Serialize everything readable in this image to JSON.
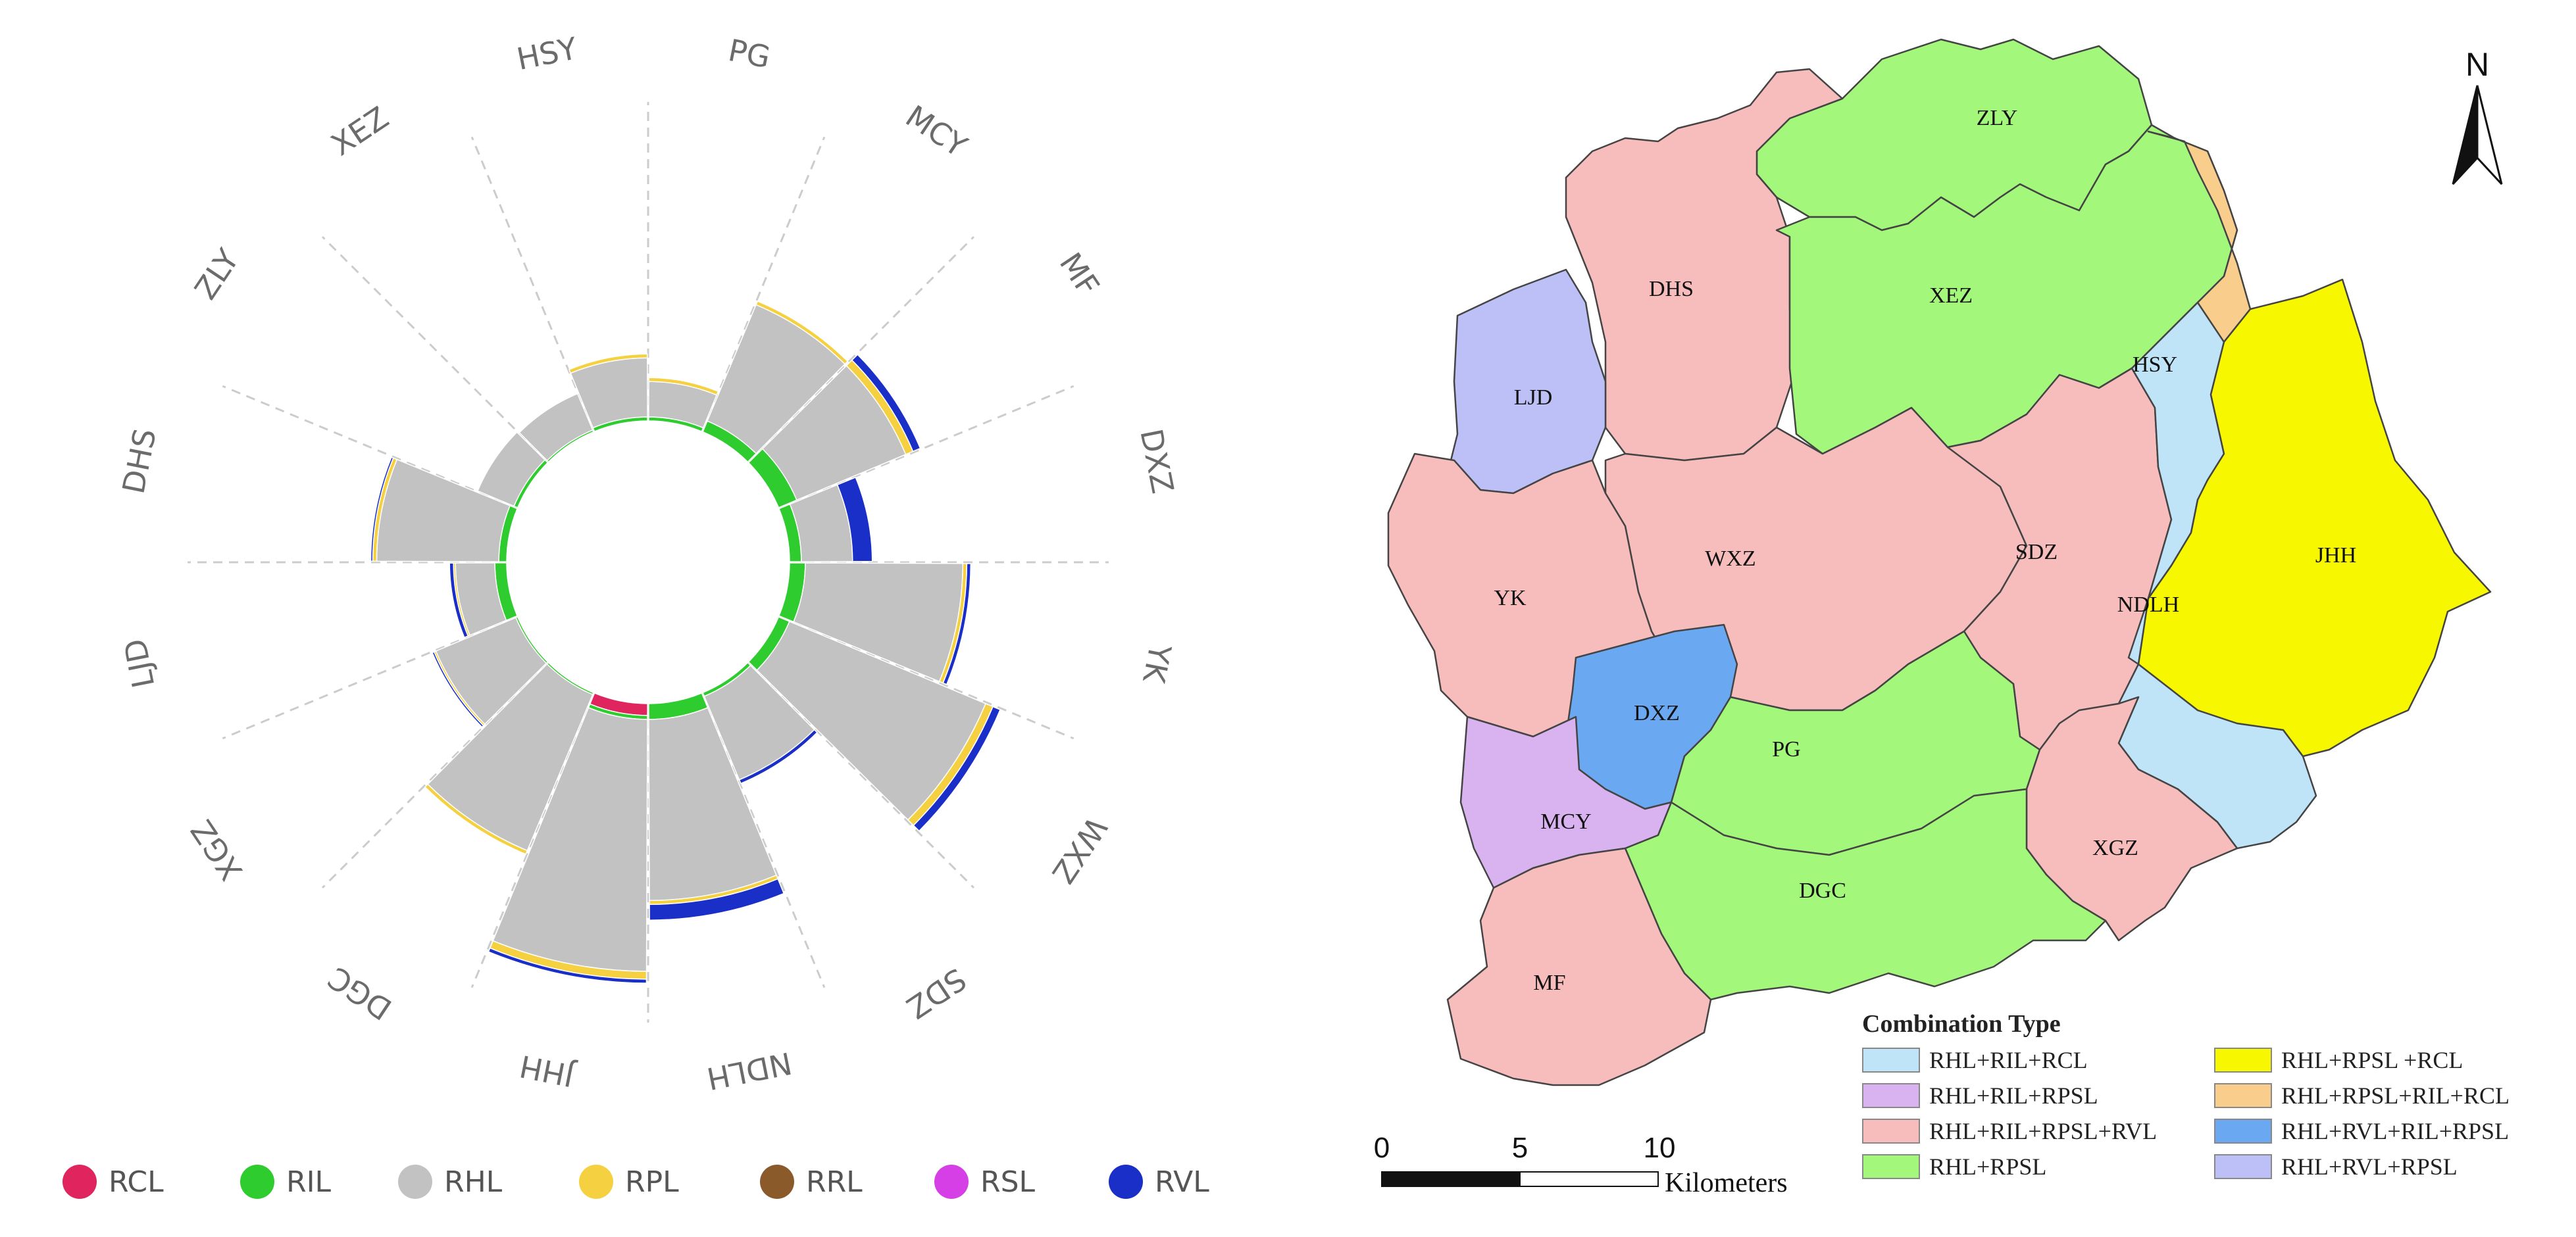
{
  "chart_data": [
    {
      "type": "radial-stacked-bar",
      "categories": [
        "PG",
        "MCY",
        "MF",
        "DXZ",
        "YK",
        "WXZ",
        "SDZ",
        "NDLH",
        "JHH",
        "DGC",
        "XGZ",
        "LJD",
        "DHS",
        "ZLY",
        "XEZ",
        "HSY"
      ],
      "series": [
        {
          "name": "RCL",
          "color": "#e0245e",
          "values": [
            0,
            0,
            0,
            0,
            0,
            0,
            0,
            0,
            3,
            0,
            0,
            0,
            0,
            0,
            0,
            0
          ]
        },
        {
          "name": "RIL",
          "color": "#2ecc2e",
          "values": [
            1,
            3,
            5,
            3,
            4,
            3,
            1,
            4,
            1,
            0.5,
            0.5,
            3,
            2,
            1,
            0.5,
            1
          ]
        },
        {
          "name": "RHL",
          "color": "#c2c2c2",
          "values": [
            9,
            32,
            30,
            13,
            40,
            54,
            23,
            46,
            64,
            43,
            22,
            10,
            31,
            10,
            10,
            15
          ]
        },
        {
          "name": "RPL",
          "color": "#f5d142",
          "values": [
            1,
            1,
            2,
            0,
            1,
            2,
            0,
            1,
            2,
            1,
            0.5,
            0.5,
            1,
            0,
            0,
            1
          ]
        },
        {
          "name": "RRL",
          "color": "#8b5a2b",
          "values": [
            0,
            0,
            0,
            0,
            0,
            0,
            0,
            0,
            0,
            0,
            0,
            0,
            0,
            0,
            0,
            0
          ]
        },
        {
          "name": "RSL",
          "color": "#d63fe6",
          "values": [
            0,
            0,
            0,
            0,
            0,
            0,
            0,
            0,
            0,
            0,
            0,
            0,
            0,
            0,
            0,
            0
          ]
        },
        {
          "name": "RVL",
          "color": "#1a2ec8",
          "values": [
            0,
            0,
            2,
            5,
            1,
            2,
            1,
            4,
            1,
            0,
            0.5,
            1,
            0.5,
            0,
            0,
            0
          ]
        }
      ],
      "legend_position": "bottom"
    },
    {
      "type": "choropleth-map",
      "north_label": "N",
      "regions": [
        {
          "name": "ZLY",
          "type": "RHL+RPSL"
        },
        {
          "name": "DHS",
          "type": "RHL+RIL+RPSL+RVL"
        },
        {
          "name": "XEZ",
          "type": "RHL+RPSL"
        },
        {
          "name": "HSY",
          "type": "RHL+RPSL+RIL+RCL"
        },
        {
          "name": "LJD",
          "type": "RHL+RVL+RPSL"
        },
        {
          "name": "WXZ",
          "type": "RHL+RIL+RPSL+RVL"
        },
        {
          "name": "SDZ",
          "type": "RHL+RIL+RPSL+RVL"
        },
        {
          "name": "NDLH",
          "type": "RHL+RIL+RCL"
        },
        {
          "name": "JHH",
          "type": "RHL+RPSL +RCL"
        },
        {
          "name": "YK",
          "type": "RHL+RIL+RPSL+RVL"
        },
        {
          "name": "DXZ",
          "type": "RHL+RVL+RIL+RPSL"
        },
        {
          "name": "PG",
          "type": "RHL+RPSL"
        },
        {
          "name": "XGZ",
          "type": "RHL+RIL+RPSL+RVL"
        },
        {
          "name": "MCY",
          "type": "RHL+RIL+RPSL"
        },
        {
          "name": "DGC",
          "type": "RHL+RPSL"
        },
        {
          "name": "MF",
          "type": "RHL+RIL+RPSL+RVL"
        }
      ],
      "legend": {
        "title": "Combination Type",
        "items": [
          {
            "label": "RHL+RIL+RCL",
            "color": "#bfe3f7"
          },
          {
            "label": "RHL+RIL+RPSL",
            "color": "#d9b3f0"
          },
          {
            "label": "RHL+RIL+RPSL+RVL",
            "color": "#f7bcbc"
          },
          {
            "label": "RHL+RPSL",
            "color": "#a3f77a"
          },
          {
            "label": "RHL+RPSL +RCL",
            "color": "#f7f700"
          },
          {
            "label": "RHL+RPSL+RIL+RCL",
            "color": "#f9cd8c"
          },
          {
            "label": "RHL+RVL+RIL+RPSL",
            "color": "#6aa8f2"
          },
          {
            "label": "RHL+RVL+RPSL",
            "color": "#bcc0f7"
          }
        ]
      },
      "scale_bar": {
        "ticks": [
          "0",
          "5",
          "10"
        ],
        "unit": "Kilometers"
      }
    }
  ]
}
